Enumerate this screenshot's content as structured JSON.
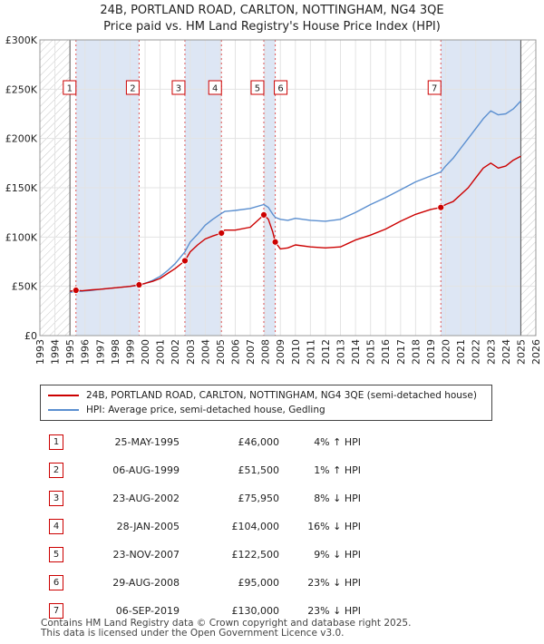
{
  "title_line1": "24B, PORTLAND ROAD, CARLTON, NOTTINGHAM, NG4 3QE",
  "title_line2": "Price paid vs. HM Land Registry's House Price Index (HPI)",
  "colors": {
    "price_paid": "#cc0000",
    "hpi": "#5b8fd0",
    "shade": "#dde6f4",
    "marker_border": "#cc0000"
  },
  "chart_data": {
    "type": "line",
    "xlabel": "",
    "ylabel": "",
    "xlim": [
      1993.0,
      2026.0
    ],
    "ylim": [
      0,
      300000
    ],
    "y_ticks": [
      0,
      50000,
      100000,
      150000,
      200000,
      250000,
      300000
    ],
    "y_tick_labels": [
      "£0",
      "£50K",
      "£100K",
      "£150K",
      "£200K",
      "£250K",
      "£300K"
    ],
    "x_ticks": [
      1993,
      1994,
      1995,
      1996,
      1997,
      1998,
      1999,
      2000,
      2001,
      2002,
      2003,
      2004,
      2005,
      2006,
      2007,
      2008,
      2009,
      2010,
      2011,
      2012,
      2013,
      2014,
      2015,
      2016,
      2017,
      2018,
      2019,
      2020,
      2021,
      2022,
      2023,
      2024,
      2025,
      2026
    ],
    "x_tick_labels": [
      "1993",
      "1994",
      "1995",
      "1996",
      "1997",
      "1998",
      "1999",
      "2000",
      "2001",
      "2002",
      "2003",
      "2004",
      "2005",
      "2006",
      "2007",
      "2008",
      "2009",
      "2010",
      "2011",
      "2012",
      "2013",
      "2014",
      "2015",
      "2016",
      "2017",
      "2018",
      "2019",
      "2020",
      "2021",
      "2022",
      "2023",
      "2024",
      "2025",
      "2026"
    ],
    "hatched_ranges": [
      [
        1993.0,
        1995.0
      ],
      [
        2025.0,
        2026.0
      ]
    ],
    "grid": true,
    "series": [
      {
        "name": "24B, PORTLAND ROAD, CARLTON, NOTTINGHAM, NG4 3QE (semi-detached house)",
        "x": [
          1995.0,
          1995.4,
          1995.8,
          1996.5,
          1997.0,
          1998.0,
          1999.0,
          1999.6,
          2000.0,
          2000.5,
          2001.0,
          2001.5,
          2002.0,
          2002.65,
          2003.0,
          2003.5,
          2004.0,
          2004.5,
          2005.08,
          2005.3,
          2006.0,
          2007.0,
          2007.9,
          2008.2,
          2008.5,
          2008.66,
          2009.0,
          2009.5,
          2010.0,
          2011.0,
          2012.0,
          2013.0,
          2014.0,
          2015.0,
          2016.0,
          2017.0,
          2018.0,
          2019.0,
          2019.68,
          2020.0,
          2020.5,
          2021.0,
          2021.5,
          2022.0,
          2022.5,
          2023.0,
          2023.5,
          2024.0,
          2024.5,
          2025.0
        ],
        "y": [
          45000,
          46000,
          45500,
          46500,
          47000,
          48500,
          50000,
          51500,
          53000,
          55000,
          58000,
          63000,
          68000,
          75950,
          85000,
          92000,
          98000,
          101000,
          104000,
          107000,
          107000,
          110000,
          122500,
          118000,
          105000,
          95000,
          88000,
          89000,
          92000,
          90000,
          89000,
          90000,
          97000,
          102000,
          108000,
          116000,
          123000,
          128000,
          130000,
          133000,
          136000,
          143000,
          150000,
          160000,
          170000,
          175000,
          170000,
          172000,
          178000,
          182000
        ]
      },
      {
        "name": "HPI: Average price, semi-detached house, Gedling",
        "x": [
          1995.0,
          1995.4,
          1995.8,
          1996.5,
          1997.0,
          1998.0,
          1999.0,
          1999.6,
          2000.0,
          2000.5,
          2001.0,
          2001.5,
          2002.0,
          2002.65,
          2003.0,
          2003.5,
          2004.0,
          2004.5,
          2005.08,
          2005.3,
          2006.0,
          2007.0,
          2007.9,
          2008.2,
          2008.5,
          2008.66,
          2009.0,
          2009.5,
          2010.0,
          2011.0,
          2012.0,
          2013.0,
          2014.0,
          2015.0,
          2016.0,
          2017.0,
          2018.0,
          2019.0,
          2019.68,
          2020.0,
          2020.5,
          2021.0,
          2021.5,
          2022.0,
          2022.5,
          2023.0,
          2023.5,
          2024.0,
          2024.5,
          2025.0
        ],
        "y": [
          44000,
          44500,
          45000,
          46000,
          47000,
          48500,
          50000,
          51000,
          53000,
          56000,
          60000,
          66000,
          73000,
          85000,
          95000,
          103000,
          112000,
          118000,
          124000,
          126000,
          127000,
          129000,
          133000,
          130000,
          123000,
          120000,
          118000,
          117000,
          119000,
          117000,
          116000,
          118000,
          125000,
          133000,
          140000,
          148000,
          156000,
          162000,
          166000,
          172000,
          180000,
          190000,
          200000,
          210000,
          220000,
          228000,
          224000,
          225000,
          230000,
          238000
        ]
      }
    ],
    "annotations": [
      {
        "label": "1",
        "x": 1995.4,
        "y": 46000
      },
      {
        "label": "2",
        "x": 1999.6,
        "y": 51500
      },
      {
        "label": "3",
        "x": 2002.65,
        "y": 75950
      },
      {
        "label": "4",
        "x": 2005.08,
        "y": 104000
      },
      {
        "label": "5",
        "x": 2007.9,
        "y": 122500
      },
      {
        "label": "6",
        "x": 2008.66,
        "y": 95000
      },
      {
        "label": "7",
        "x": 2019.68,
        "y": 130000
      }
    ]
  },
  "legend": {
    "entries": [
      "24B, PORTLAND ROAD, CARLTON, NOTTINGHAM, NG4 3QE (semi-detached house)",
      "HPI: Average price, semi-detached house, Gedling"
    ]
  },
  "transactions": [
    {
      "num": "1",
      "date": "25-MAY-1995",
      "price": "£46,000",
      "hpi": "4% ↑ HPI"
    },
    {
      "num": "2",
      "date": "06-AUG-1999",
      "price": "£51,500",
      "hpi": "1% ↑ HPI"
    },
    {
      "num": "3",
      "date": "23-AUG-2002",
      "price": "£75,950",
      "hpi": "8% ↓ HPI"
    },
    {
      "num": "4",
      "date": "28-JAN-2005",
      "price": "£104,000",
      "hpi": "16% ↓ HPI"
    },
    {
      "num": "5",
      "date": "23-NOV-2007",
      "price": "£122,500",
      "hpi": "9% ↓ HPI"
    },
    {
      "num": "6",
      "date": "29-AUG-2008",
      "price": "£95,000",
      "hpi": "23% ↓ HPI"
    },
    {
      "num": "7",
      "date": "06-SEP-2019",
      "price": "£130,000",
      "hpi": "23% ↓ HPI"
    }
  ],
  "footer_line1": "Contains HM Land Registry data © Crown copyright and database right 2025.",
  "footer_line2": "This data is licensed under the Open Government Licence v3.0."
}
